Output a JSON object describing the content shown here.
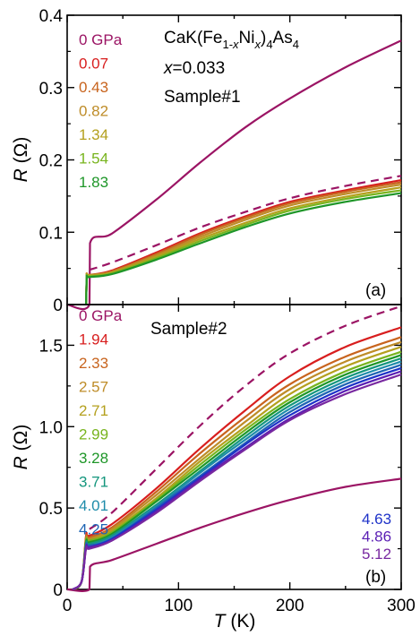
{
  "chart_data": [
    {
      "type": "line",
      "panel_label": "(a)",
      "ylabel": {
        "main": "R",
        "unit": "(Ω)"
      },
      "xlim": [
        0,
        300
      ],
      "ylim": [
        0,
        0.4
      ],
      "yticks": [
        "0",
        "0.1",
        "0.2",
        "0.3",
        "0.4"
      ],
      "annotations": {
        "compound": {
          "a": "CaK(Fe",
          "b": "1-",
          "c": "x",
          "d": "Ni",
          "e": "x",
          "f": ")",
          "g": "4",
          "h": "As",
          "i": "4"
        },
        "composition": {
          "var": "x",
          "val": "=0.033"
        },
        "sample": "Sample#1"
      },
      "series": [
        {
          "name": "0 GPa",
          "color": "#9b1464",
          "dash": "solid",
          "x": [
            0,
            20,
            20.5,
            40,
            80,
            120,
            160,
            200,
            250,
            300
          ],
          "y": [
            0,
            0,
            0.085,
            0.098,
            0.145,
            0.197,
            0.245,
            0.285,
            0.328,
            0.365
          ]
        },
        {
          "name": "0 GPa (dashed)",
          "color": "#9b1464",
          "dash": "dashed",
          "x": [
            20,
            40,
            80,
            120,
            160,
            200,
            250,
            300
          ],
          "y": [
            0.048,
            0.058,
            0.082,
            0.107,
            0.128,
            0.147,
            0.164,
            0.178
          ]
        },
        {
          "name": "0.07",
          "color": "#d81e1e",
          "dash": "solid",
          "x": [
            17,
            17.5,
            20,
            40,
            80,
            120,
            160,
            200,
            250,
            300
          ],
          "y": [
            0,
            0.04,
            0.041,
            0.047,
            0.072,
            0.099,
            0.122,
            0.142,
            0.158,
            0.172
          ]
        },
        {
          "name": "0.43",
          "color": "#c8641e",
          "dash": "solid",
          "x": [
            17,
            17.5,
            20,
            40,
            80,
            120,
            160,
            200,
            250,
            300
          ],
          "y": [
            0,
            0.04,
            0.041,
            0.046,
            0.07,
            0.097,
            0.12,
            0.14,
            0.156,
            0.169
          ]
        },
        {
          "name": "0.82",
          "color": "#be8c28",
          "dash": "solid",
          "x": [
            17,
            17.5,
            20,
            40,
            80,
            120,
            160,
            200,
            250,
            300
          ],
          "y": [
            0,
            0.04,
            0.041,
            0.045,
            0.068,
            0.094,
            0.117,
            0.137,
            0.153,
            0.166
          ]
        },
        {
          "name": "1.34",
          "color": "#b4a01e",
          "dash": "solid",
          "x": [
            17,
            17.5,
            20,
            40,
            80,
            120,
            160,
            200,
            250,
            300
          ],
          "y": [
            0,
            0.039,
            0.04,
            0.044,
            0.066,
            0.091,
            0.113,
            0.133,
            0.149,
            0.162
          ]
        },
        {
          "name": "1.54",
          "color": "#78b41e",
          "dash": "solid",
          "x": [
            17,
            17.5,
            20,
            40,
            80,
            120,
            160,
            200,
            250,
            300
          ],
          "y": [
            0,
            0.038,
            0.039,
            0.043,
            0.064,
            0.088,
            0.11,
            0.13,
            0.146,
            0.158
          ]
        },
        {
          "name": "1.83",
          "color": "#1e9628",
          "dash": "solid",
          "x": [
            17,
            17.5,
            20,
            40,
            80,
            120,
            160,
            200,
            250,
            300
          ],
          "y": [
            0,
            0.037,
            0.038,
            0.042,
            0.062,
            0.085,
            0.107,
            0.126,
            0.142,
            0.154
          ]
        }
      ]
    },
    {
      "type": "line",
      "panel_label": "(b)",
      "xlabel": {
        "main": "T",
        "unit": "(K)"
      },
      "ylabel": {
        "main": "R",
        "unit": "(Ω)"
      },
      "xlim": [
        0,
        300
      ],
      "ylim": [
        0,
        1.75
      ],
      "xticks": [
        "0",
        "100",
        "200",
        "300"
      ],
      "yticks": [
        "0",
        "0.5",
        "1.0",
        "1.5"
      ],
      "annotations": {
        "sample": "Sample#2"
      },
      "series": [
        {
          "name": "0 GPa",
          "color": "#9b1464",
          "dash": "solid",
          "x": [
            0,
            20,
            20.5,
            40,
            80,
            120,
            160,
            200,
            250,
            300
          ],
          "y": [
            0,
            0,
            0.14,
            0.18,
            0.28,
            0.38,
            0.47,
            0.55,
            0.63,
            0.68
          ]
        },
        {
          "name": "0 GPa (dashed)",
          "color": "#9b1464",
          "dash": "dashed",
          "x": [
            20,
            40,
            80,
            120,
            160,
            200,
            250,
            300
          ],
          "y": [
            0.37,
            0.47,
            0.74,
            1.01,
            1.25,
            1.45,
            1.62,
            1.74
          ]
        },
        {
          "name": "1.94",
          "color": "#d81e1e",
          "dash": "solid",
          "x": [
            5,
            13,
            17,
            20,
            40,
            80,
            120,
            160,
            200,
            250,
            300
          ],
          "y": [
            0,
            0.05,
            0.33,
            0.33,
            0.4,
            0.62,
            0.87,
            1.1,
            1.31,
            1.49,
            1.61
          ]
        },
        {
          "name": "2.33",
          "color": "#c8641e",
          "dash": "solid",
          "x": [
            5,
            13,
            17,
            20,
            40,
            80,
            120,
            160,
            200,
            250,
            300
          ],
          "y": [
            0,
            0.05,
            0.32,
            0.32,
            0.38,
            0.6,
            0.84,
            1.06,
            1.26,
            1.43,
            1.55
          ]
        },
        {
          "name": "2.57",
          "color": "#be8c28",
          "dash": "solid",
          "x": [
            5,
            13,
            17,
            20,
            40,
            80,
            120,
            160,
            200,
            250,
            300
          ],
          "y": [
            0,
            0.05,
            0.31,
            0.31,
            0.37,
            0.58,
            0.81,
            1.03,
            1.23,
            1.4,
            1.52
          ]
        },
        {
          "name": "2.71",
          "color": "#b4a01e",
          "dash": "solid",
          "x": [
            5,
            13,
            17,
            20,
            40,
            80,
            120,
            160,
            200,
            250,
            300
          ],
          "y": [
            0,
            0.05,
            0.3,
            0.3,
            0.36,
            0.56,
            0.79,
            1.0,
            1.2,
            1.37,
            1.49
          ]
        },
        {
          "name": "2.99",
          "color": "#78b41e",
          "dash": "solid",
          "x": [
            5,
            13,
            17,
            20,
            40,
            80,
            120,
            160,
            200,
            250,
            300
          ],
          "y": [
            0,
            0.05,
            0.3,
            0.3,
            0.35,
            0.55,
            0.77,
            0.98,
            1.17,
            1.34,
            1.46
          ]
        },
        {
          "name": "3.28",
          "color": "#1e9628",
          "dash": "solid",
          "x": [
            5,
            13,
            17,
            20,
            40,
            80,
            120,
            160,
            200,
            250,
            300
          ],
          "y": [
            0,
            0.05,
            0.29,
            0.29,
            0.34,
            0.54,
            0.75,
            0.96,
            1.15,
            1.32,
            1.44
          ]
        },
        {
          "name": "3.71",
          "color": "#14967d",
          "dash": "solid",
          "x": [
            5,
            13,
            17,
            20,
            40,
            80,
            120,
            160,
            200,
            250,
            300
          ],
          "y": [
            0,
            0.05,
            0.28,
            0.28,
            0.33,
            0.52,
            0.73,
            0.94,
            1.13,
            1.3,
            1.42
          ]
        },
        {
          "name": "4.01",
          "color": "#1e8caa",
          "dash": "solid",
          "x": [
            5,
            13,
            17,
            20,
            40,
            80,
            120,
            160,
            200,
            250,
            300
          ],
          "y": [
            0,
            0.05,
            0.27,
            0.27,
            0.32,
            0.51,
            0.72,
            0.92,
            1.11,
            1.28,
            1.4
          ]
        },
        {
          "name": "4.25",
          "color": "#1e64b4",
          "dash": "solid",
          "x": [
            5,
            13,
            17,
            20,
            40,
            80,
            120,
            160,
            200,
            250,
            300
          ],
          "y": [
            0,
            0.05,
            0.27,
            0.27,
            0.31,
            0.5,
            0.7,
            0.9,
            1.09,
            1.26,
            1.38
          ]
        },
        {
          "name": "4.63",
          "color": "#1e32c8",
          "dash": "solid",
          "x": [
            5,
            13,
            17,
            20,
            40,
            80,
            120,
            160,
            200,
            250,
            300
          ],
          "y": [
            0,
            0.05,
            0.26,
            0.26,
            0.31,
            0.49,
            0.69,
            0.89,
            1.07,
            1.24,
            1.36
          ]
        },
        {
          "name": "4.86",
          "color": "#5a1eb4",
          "dash": "solid",
          "x": [
            5,
            13,
            17,
            20,
            40,
            80,
            120,
            160,
            200,
            250,
            300
          ],
          "y": [
            0,
            0.05,
            0.26,
            0.26,
            0.3,
            0.48,
            0.68,
            0.87,
            1.05,
            1.22,
            1.34
          ]
        },
        {
          "name": "5.12",
          "color": "#7828a0",
          "dash": "solid",
          "x": [
            5,
            13,
            17,
            20,
            40,
            80,
            120,
            160,
            200,
            250,
            300
          ],
          "y": [
            0,
            0.05,
            0.25,
            0.25,
            0.3,
            0.47,
            0.67,
            0.86,
            1.04,
            1.2,
            1.32
          ]
        }
      ]
    }
  ]
}
